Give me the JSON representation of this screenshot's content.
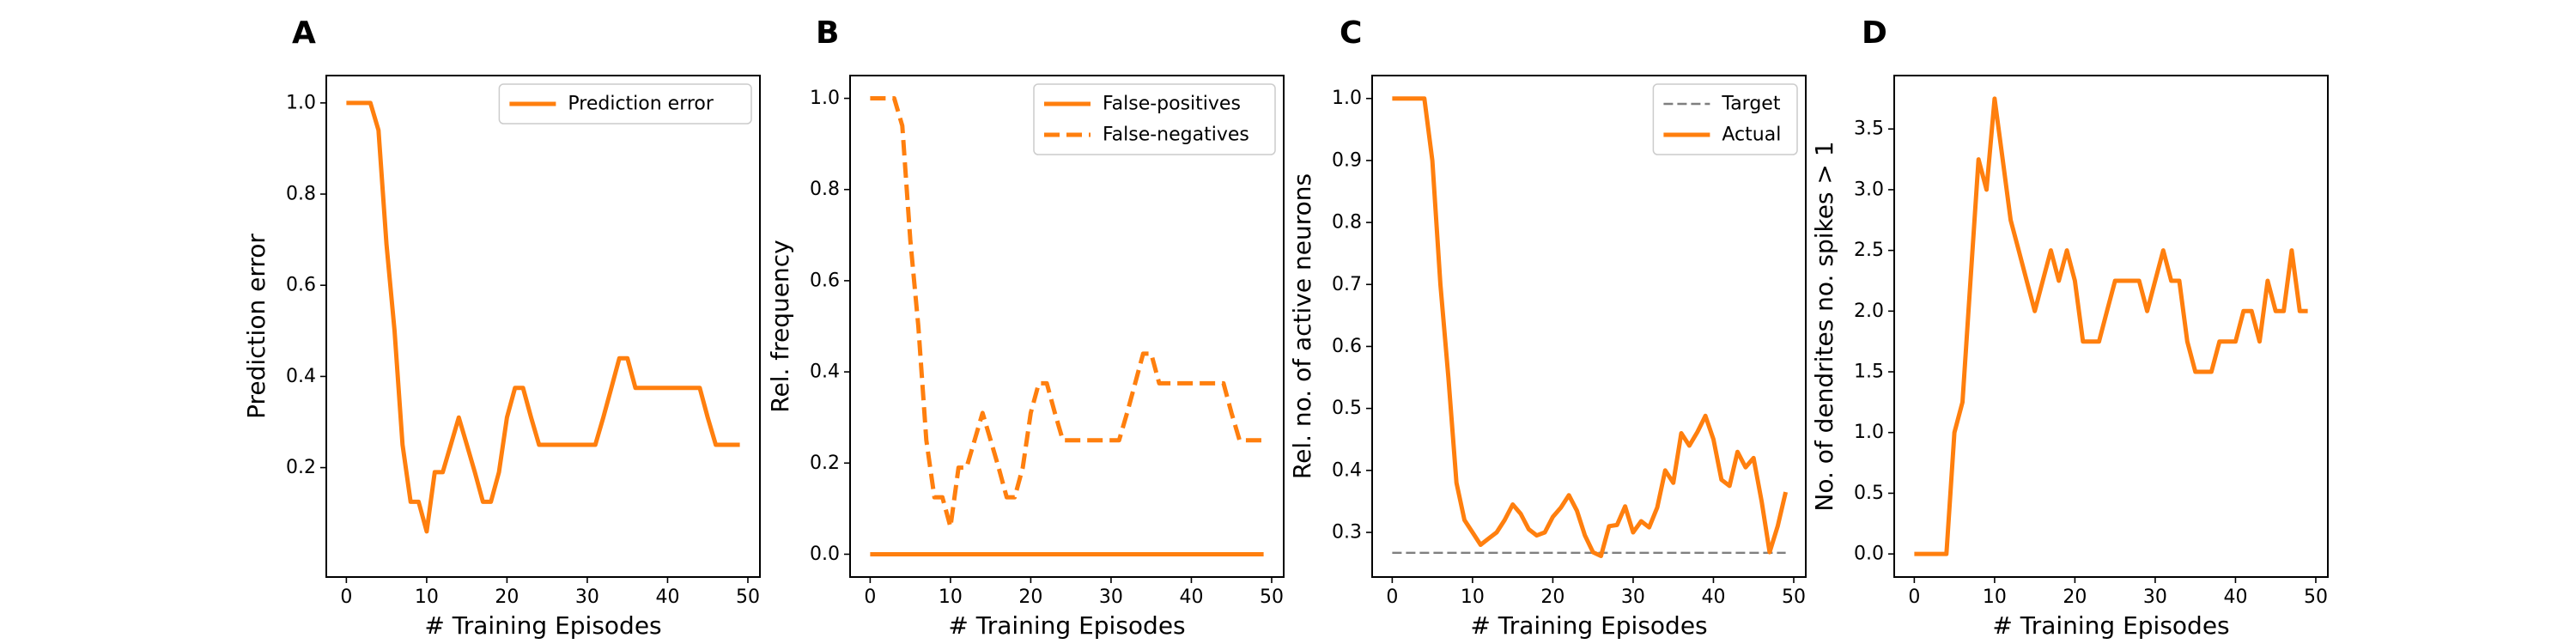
{
  "chart_data": [
    {
      "panel": "A",
      "type": "line",
      "xlabel": "# Training Episodes",
      "ylabel": "Prediction error",
      "xlim": [
        -2.5,
        51.5
      ],
      "ylim": [
        -0.04,
        1.06
      ],
      "xticks": [
        0,
        10,
        20,
        30,
        40,
        50
      ],
      "yticks": [
        0.2,
        0.4,
        0.6,
        0.8,
        1.0
      ],
      "ytick_format": 1,
      "legend": "upper right",
      "series": [
        {
          "name": "Prediction error",
          "color": "#ff7f0e",
          "dash": "solid",
          "x": [
            0,
            1,
            2,
            3,
            4,
            5,
            6,
            7,
            8,
            9,
            10,
            11,
            12,
            13,
            14,
            15,
            16,
            17,
            18,
            19,
            20,
            21,
            22,
            23,
            24,
            25,
            26,
            27,
            28,
            29,
            30,
            31,
            32,
            33,
            34,
            35,
            36,
            37,
            38,
            39,
            40,
            41,
            42,
            43,
            44,
            45,
            46,
            47,
            48,
            49
          ],
          "values": [
            1.0,
            1.0,
            1.0,
            1.0,
            0.94,
            0.69,
            0.5,
            0.25,
            0.125,
            0.125,
            0.06,
            0.19,
            0.19,
            0.25,
            0.31,
            0.25,
            0.19,
            0.125,
            0.125,
            0.19,
            0.31,
            0.375,
            0.375,
            0.31,
            0.25,
            0.25,
            0.25,
            0.25,
            0.25,
            0.25,
            0.25,
            0.25,
            0.31,
            0.375,
            0.44,
            0.44,
            0.375,
            0.375,
            0.375,
            0.375,
            0.375,
            0.375,
            0.375,
            0.375,
            0.375,
            0.31,
            0.25,
            0.25,
            0.25,
            0.25
          ]
        }
      ]
    },
    {
      "panel": "B",
      "type": "line",
      "xlabel": "# Training Episodes",
      "ylabel": "Rel. frequency",
      "xlim": [
        -2.5,
        51.5
      ],
      "ylim": [
        -0.05,
        1.05
      ],
      "xticks": [
        0,
        10,
        20,
        30,
        40,
        50
      ],
      "yticks": [
        0.0,
        0.2,
        0.4,
        0.6,
        0.8,
        1.0
      ],
      "ytick_format": 1,
      "legend": "upper right",
      "series": [
        {
          "name": "False-positives",
          "color": "#ff7f0e",
          "dash": "solid",
          "x": [
            0,
            1,
            2,
            3,
            4,
            5,
            6,
            7,
            8,
            9,
            10,
            11,
            12,
            13,
            14,
            15,
            16,
            17,
            18,
            19,
            20,
            21,
            22,
            23,
            24,
            25,
            26,
            27,
            28,
            29,
            30,
            31,
            32,
            33,
            34,
            35,
            36,
            37,
            38,
            39,
            40,
            41,
            42,
            43,
            44,
            45,
            46,
            47,
            48,
            49
          ],
          "values": [
            0,
            0,
            0,
            0,
            0,
            0,
            0,
            0,
            0,
            0,
            0,
            0,
            0,
            0,
            0,
            0,
            0,
            0,
            0,
            0,
            0,
            0,
            0,
            0,
            0,
            0,
            0,
            0,
            0,
            0,
            0,
            0,
            0,
            0,
            0,
            0,
            0,
            0,
            0,
            0,
            0,
            0,
            0,
            0,
            0,
            0,
            0,
            0,
            0,
            0
          ]
        },
        {
          "name": "False-negatives",
          "color": "#ff7f0e",
          "dash": "dashed",
          "x": [
            0,
            1,
            2,
            3,
            4,
            5,
            6,
            7,
            8,
            9,
            10,
            11,
            12,
            13,
            14,
            15,
            16,
            17,
            18,
            19,
            20,
            21,
            22,
            23,
            24,
            25,
            26,
            27,
            28,
            29,
            30,
            31,
            32,
            33,
            34,
            35,
            36,
            37,
            38,
            39,
            40,
            41,
            42,
            43,
            44,
            45,
            46,
            47,
            48,
            49
          ],
          "values": [
            1.0,
            1.0,
            1.0,
            1.0,
            0.94,
            0.69,
            0.5,
            0.25,
            0.125,
            0.125,
            0.06,
            0.19,
            0.19,
            0.25,
            0.31,
            0.25,
            0.19,
            0.125,
            0.125,
            0.19,
            0.31,
            0.375,
            0.375,
            0.31,
            0.25,
            0.25,
            0.25,
            0.25,
            0.25,
            0.25,
            0.25,
            0.25,
            0.31,
            0.375,
            0.44,
            0.44,
            0.375,
            0.375,
            0.375,
            0.375,
            0.375,
            0.375,
            0.375,
            0.375,
            0.375,
            0.31,
            0.25,
            0.25,
            0.25,
            0.25
          ]
        }
      ]
    },
    {
      "panel": "C",
      "type": "line",
      "xlabel": "# Training Episodes",
      "ylabel": "Rel. no. of active neurons",
      "xlim": [
        -2.5,
        51.5
      ],
      "ylim": [
        0.228,
        1.037
      ],
      "xticks": [
        0,
        10,
        20,
        30,
        40,
        50
      ],
      "yticks": [
        0.3,
        0.4,
        0.5,
        0.6,
        0.7,
        0.8,
        0.9,
        1.0
      ],
      "ytick_format": 1,
      "legend": "upper right",
      "series": [
        {
          "name": "Target",
          "color": "#7f7f7f",
          "dash": "dashed",
          "thin": true,
          "x": [
            0,
            49
          ],
          "values": [
            0.267,
            0.267
          ]
        },
        {
          "name": "Actual",
          "color": "#ff7f0e",
          "dash": "solid",
          "x": [
            0,
            1,
            2,
            3,
            4,
            5,
            6,
            7,
            8,
            9,
            10,
            11,
            12,
            13,
            14,
            15,
            16,
            17,
            18,
            19,
            20,
            21,
            22,
            23,
            24,
            25,
            26,
            27,
            28,
            29,
            30,
            31,
            32,
            33,
            34,
            35,
            36,
            37,
            38,
            39,
            40,
            41,
            42,
            43,
            44,
            45,
            46,
            47,
            48,
            49
          ],
          "values": [
            1.0,
            1.0,
            1.0,
            1.0,
            1.0,
            0.9,
            0.7,
            0.55,
            0.38,
            0.32,
            0.3,
            0.28,
            0.29,
            0.3,
            0.32,
            0.345,
            0.33,
            0.305,
            0.295,
            0.3,
            0.325,
            0.34,
            0.36,
            0.335,
            0.295,
            0.268,
            0.262,
            0.31,
            0.312,
            0.342,
            0.3,
            0.318,
            0.308,
            0.34,
            0.4,
            0.38,
            0.46,
            0.44,
            0.462,
            0.488,
            0.45,
            0.385,
            0.375,
            0.43,
            0.405,
            0.42,
            0.35,
            0.268,
            0.31,
            0.365
          ]
        }
      ]
    },
    {
      "panel": "D",
      "type": "line",
      "xlabel": "# Training Episodes",
      "ylabel": "No. of dendrites no. spikes > 1",
      "xlim": [
        -2.5,
        51.5
      ],
      "ylim": [
        -0.19,
        3.94
      ],
      "xticks": [
        0,
        10,
        20,
        30,
        40,
        50
      ],
      "yticks": [
        0.0,
        0.5,
        1.0,
        1.5,
        2.0,
        2.5,
        3.0,
        3.5
      ],
      "ytick_format": 1,
      "legend": "none",
      "series": [
        {
          "name": "",
          "color": "#ff7f0e",
          "dash": "solid",
          "x": [
            0,
            1,
            2,
            3,
            4,
            5,
            6,
            7,
            8,
            9,
            10,
            11,
            12,
            13,
            14,
            15,
            16,
            17,
            18,
            19,
            20,
            21,
            22,
            23,
            24,
            25,
            26,
            27,
            28,
            29,
            30,
            31,
            32,
            33,
            34,
            35,
            36,
            37,
            38,
            39,
            40,
            41,
            42,
            43,
            44,
            45,
            46,
            47,
            48,
            49
          ],
          "values": [
            0,
            0,
            0,
            0,
            0,
            1.0,
            1.25,
            2.25,
            3.25,
            3.0,
            3.75,
            3.25,
            2.75,
            2.5,
            2.25,
            2.0,
            2.25,
            2.5,
            2.25,
            2.5,
            2.25,
            1.75,
            1.75,
            1.75,
            2.0,
            2.25,
            2.25,
            2.25,
            2.25,
            2.0,
            2.25,
            2.5,
            2.25,
            2.25,
            1.75,
            1.5,
            1.5,
            1.5,
            1.75,
            1.75,
            1.75,
            2.0,
            2.0,
            1.75,
            2.25,
            2.0,
            2.0,
            2.5,
            2.0,
            2.0
          ]
        }
      ]
    }
  ]
}
